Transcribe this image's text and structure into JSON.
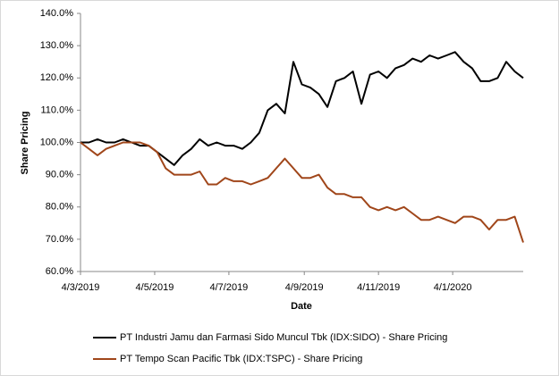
{
  "chart_data": {
    "type": "line",
    "y_label": "Share Pricing",
    "x_label": "Date",
    "x": [
      "2019-03-04",
      "2019-03-11",
      "2019-03-18",
      "2019-03-25",
      "2019-04-01",
      "2019-04-08",
      "2019-04-15",
      "2019-04-22",
      "2019-04-29",
      "2019-05-06",
      "2019-05-13",
      "2019-05-20",
      "2019-05-27",
      "2019-06-03",
      "2019-06-10",
      "2019-06-17",
      "2019-06-24",
      "2019-07-01",
      "2019-07-08",
      "2019-07-15",
      "2019-07-22",
      "2019-07-29",
      "2019-08-05",
      "2019-08-12",
      "2019-08-19",
      "2019-08-26",
      "2019-09-02",
      "2019-09-09",
      "2019-09-16",
      "2019-09-23",
      "2019-09-30",
      "2019-10-07",
      "2019-10-14",
      "2019-10-21",
      "2019-10-28",
      "2019-11-04",
      "2019-11-11",
      "2019-11-18",
      "2019-11-25",
      "2019-12-02",
      "2019-12-09",
      "2019-12-16",
      "2019-12-23",
      "2019-12-30",
      "2020-01-06",
      "2020-01-13",
      "2020-01-20",
      "2020-01-27",
      "2020-02-03",
      "2020-02-10",
      "2020-02-17",
      "2020-02-24",
      "2020-03-02"
    ],
    "series": [
      {
        "name": "PT Industri Jamu dan Farmasi Sido Muncul Tbk (IDX:SIDO) - Share Pricing",
        "color": "#000000",
        "values": [
          100,
          100,
          101,
          100,
          100,
          101,
          100,
          99,
          99,
          97,
          95,
          93,
          96,
          98,
          101,
          99,
          100,
          99,
          99,
          98,
          100,
          103,
          110,
          112,
          109,
          125,
          118,
          117,
          115,
          111,
          119,
          120,
          122,
          112,
          121,
          122,
          120,
          123,
          124,
          126,
          125,
          127,
          126,
          127,
          128,
          125,
          123,
          119,
          119,
          120,
          125,
          122,
          120
        ]
      },
      {
        "name": "PT Tempo Scan Pacific Tbk (IDX:TSPC) - Share Pricing",
        "color": "#a0461a",
        "values": [
          100,
          98,
          96,
          98,
          99,
          100,
          100,
          100,
          99,
          97,
          92,
          90,
          90,
          90,
          91,
          87,
          87,
          89,
          88,
          88,
          87,
          88,
          89,
          92,
          95,
          92,
          89,
          89,
          90,
          86,
          84,
          84,
          83,
          83,
          80,
          79,
          80,
          79,
          80,
          78,
          76,
          76,
          77,
          76,
          75,
          77,
          77,
          76,
          73,
          76,
          76,
          77,
          69
        ]
      }
    ],
    "xlim": [
      "2019-03-04",
      "2020-03-02"
    ],
    "xticks": [
      {
        "value": "2019-03-04",
        "label": "4/3/2019"
      },
      {
        "value": "2019-05-04",
        "label": "4/5/2019"
      },
      {
        "value": "2019-07-04",
        "label": "4/7/2019"
      },
      {
        "value": "2019-09-04",
        "label": "4/9/2019"
      },
      {
        "value": "2019-11-04",
        "label": "4/11/2019"
      },
      {
        "value": "2020-01-04",
        "label": "4/1/2020"
      }
    ],
    "ylim": [
      60,
      140
    ],
    "yticks": [
      {
        "value": 60,
        "label": "60.0%"
      },
      {
        "value": 70,
        "label": "70.0%"
      },
      {
        "value": 80,
        "label": "80.0%"
      },
      {
        "value": 90,
        "label": "90.0%"
      },
      {
        "value": 100,
        "label": "100.0%"
      },
      {
        "value": 110,
        "label": "110.0%"
      },
      {
        "value": 120,
        "label": "120.0%"
      },
      {
        "value": 130,
        "label": "130.0%"
      },
      {
        "value": 140,
        "label": "140.0%"
      }
    ],
    "legend": "bottom",
    "grid": false
  }
}
